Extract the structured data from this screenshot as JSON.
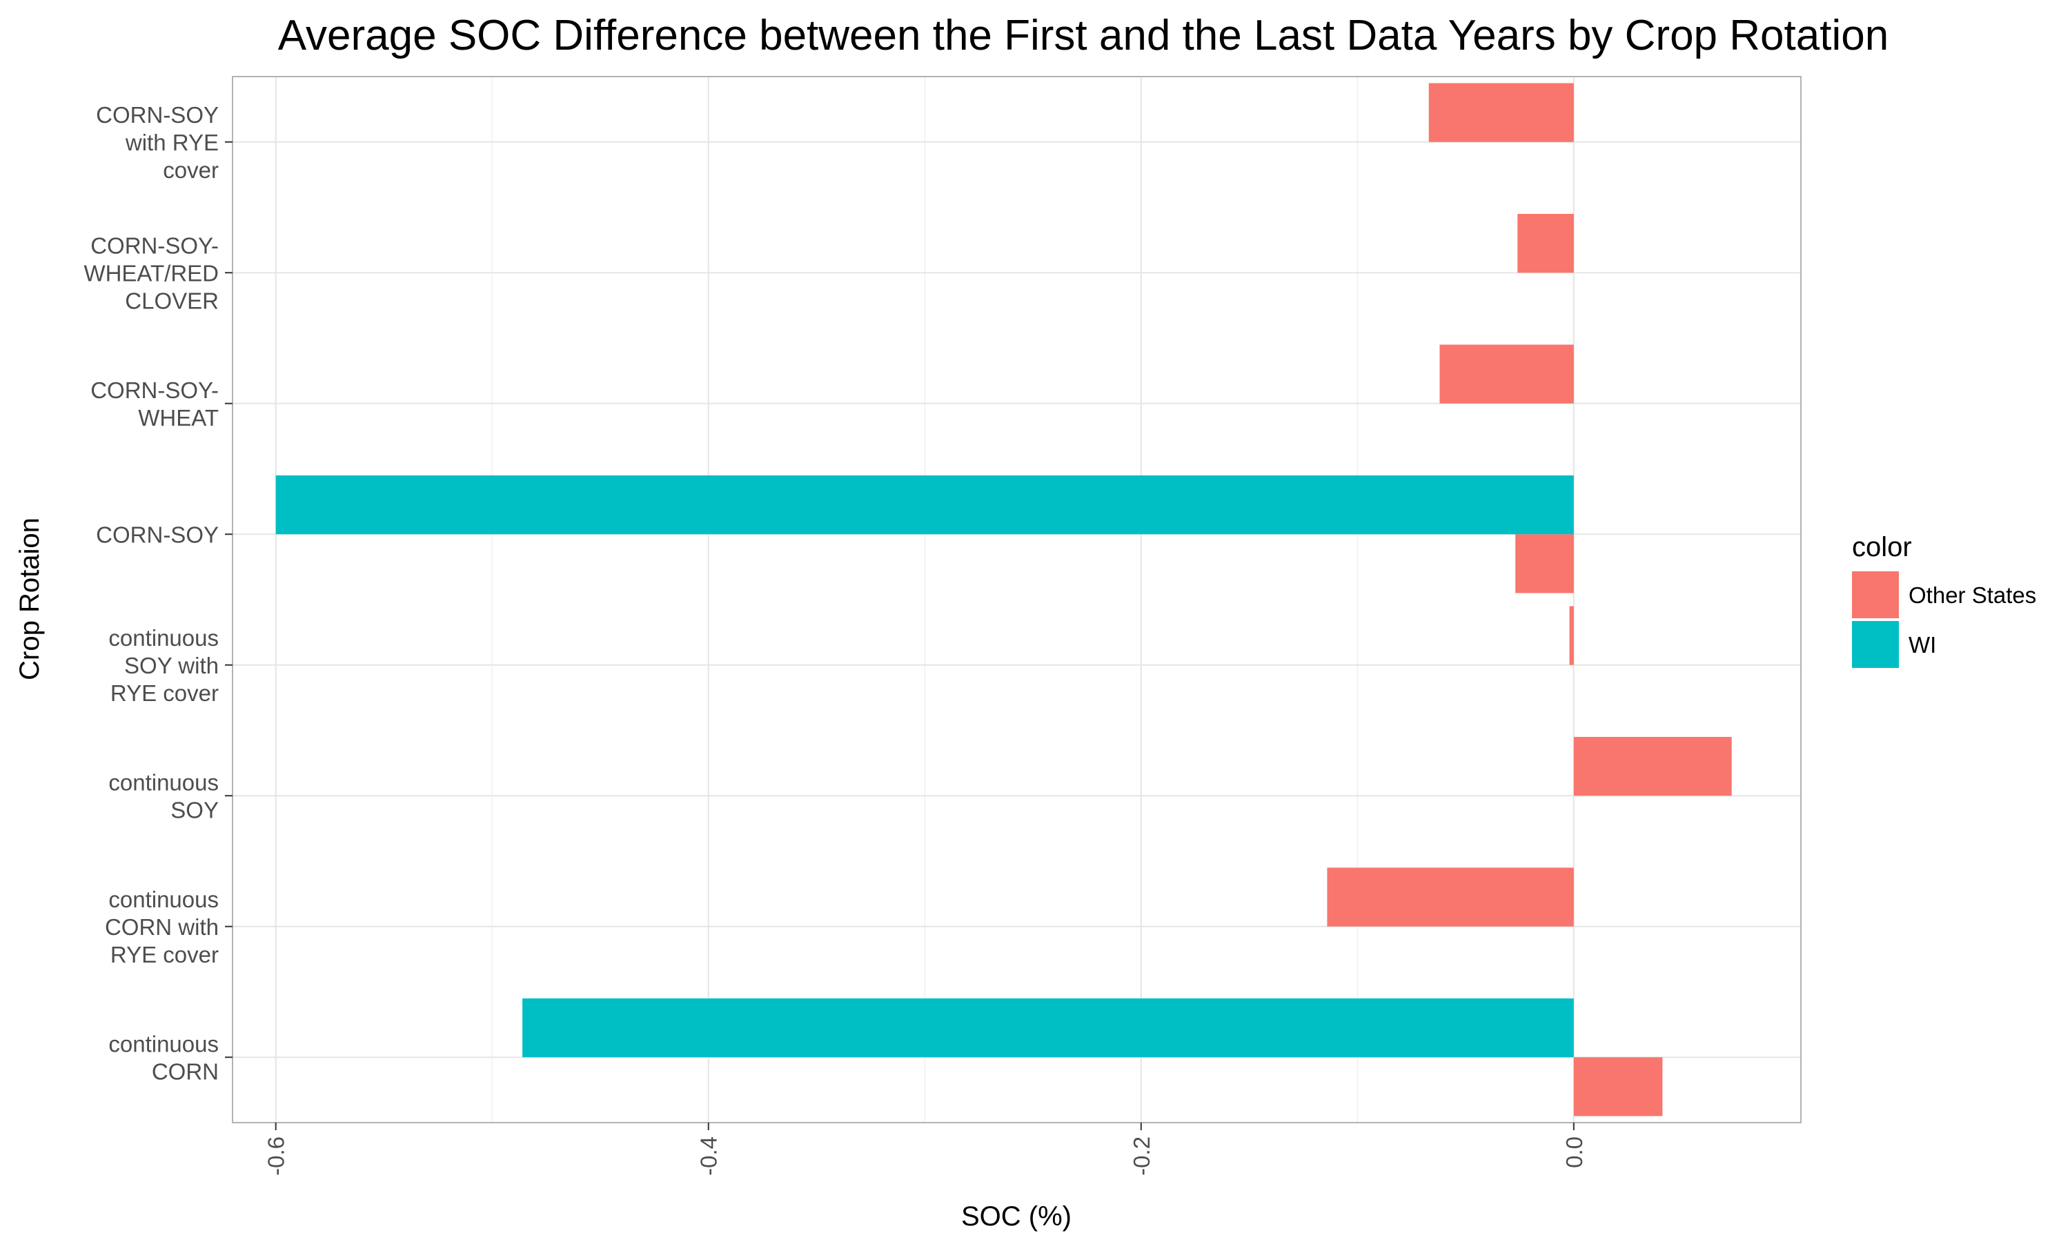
{
  "chart_data": {
    "type": "bar",
    "orientation": "horizontal",
    "title": "Average SOC Difference between the First and the Last Data Years by Crop Rotation",
    "xlabel": "SOC (%)",
    "ylabel": "Crop Rotaion",
    "xlim": [
      -0.62,
      0.105
    ],
    "xticks": [
      "-0.6",
      "-0.4",
      "-0.2",
      "0.0"
    ],
    "xtick_values": [
      -0.6,
      -0.4,
      -0.2,
      0.0
    ],
    "categories": [
      "continuous CORN",
      "continuous CORN with RYE cover",
      "continuous SOY",
      "continuous SOY with RYE cover",
      "CORN-SOY",
      "CORN-SOY-WHEAT",
      "CORN-SOY-WHEAT/RED CLOVER",
      "CORN-SOY with RYE cover"
    ],
    "category_label_lines": [
      [
        "continuous",
        "CORN"
      ],
      [
        "continuous",
        "CORN with",
        "RYE cover"
      ],
      [
        "continuous",
        "SOY"
      ],
      [
        "continuous",
        "SOY with",
        "RYE cover"
      ],
      [
        "CORN-SOY"
      ],
      [
        "CORN-SOY-",
        "WHEAT"
      ],
      [
        "CORN-SOY-",
        "WHEAT/RED",
        "CLOVER"
      ],
      [
        "CORN-SOY",
        "with RYE",
        "cover"
      ]
    ],
    "series": [
      {
        "name": "Other States",
        "color": "#F8766D",
        "values": [
          0.041,
          -0.114,
          0.073,
          -0.002,
          -0.027,
          -0.062,
          -0.026,
          -0.067
        ]
      },
      {
        "name": "WI",
        "color": "#00BFC4",
        "values": [
          -0.486,
          null,
          null,
          null,
          -0.6,
          null,
          null,
          null
        ]
      }
    ],
    "legend_title": "color",
    "legend_position": "right",
    "grid": true
  }
}
